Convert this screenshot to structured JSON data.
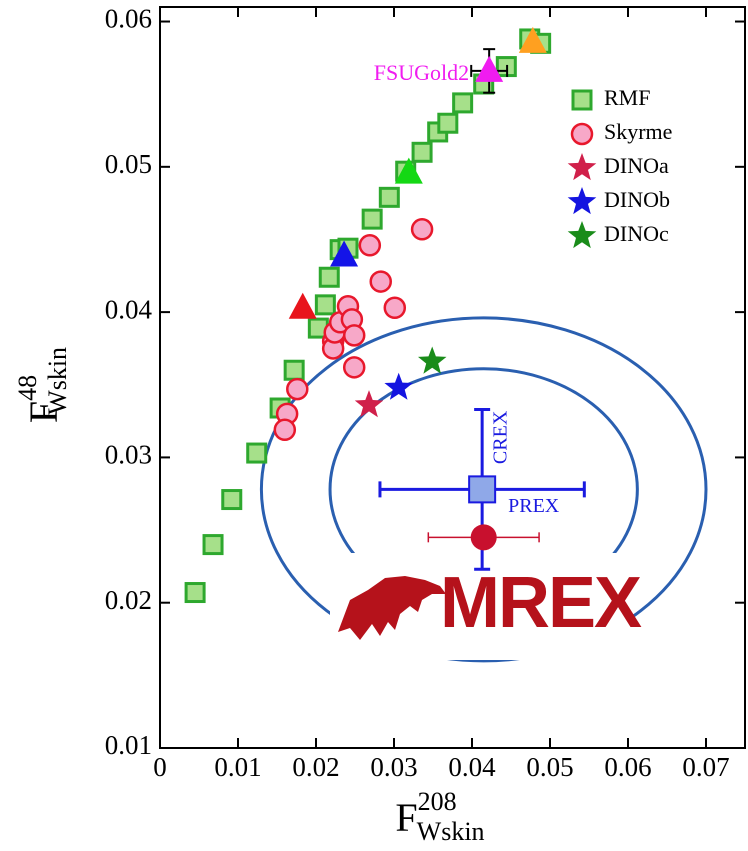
{
  "chart_data": {
    "type": "scatter",
    "x_label": {
      "base": "F",
      "sup": "208",
      "sub": "Wskin"
    },
    "y_label": {
      "base": "F",
      "sup": "48",
      "sub": "Wskin"
    },
    "xlim": [
      0,
      0.075
    ],
    "ylim": [
      0.01,
      0.061
    ],
    "xticks": [
      0,
      0.01,
      0.02,
      0.03,
      0.04,
      0.05,
      0.06,
      0.07
    ],
    "yticks": [
      0.01,
      0.02,
      0.03,
      0.04,
      0.05,
      0.06
    ],
    "series": [
      {
        "name": "RMF",
        "marker": "square",
        "color": "#a6e08a",
        "edge": "#2ea82e",
        "x": [
          0.0045,
          0.0068,
          0.0092,
          0.0124,
          0.0154,
          0.0172,
          0.0203,
          0.0212,
          0.0217,
          0.0231,
          0.0241,
          0.0272,
          0.0294,
          0.0315,
          0.0336,
          0.0356,
          0.0369,
          0.0388,
          0.0415,
          0.0444,
          0.0474,
          0.0488
        ],
        "values": [
          0.0207,
          0.024,
          0.0271,
          0.0303,
          0.0334,
          0.036,
          0.0389,
          0.0405,
          0.0424,
          0.0443,
          0.0444,
          0.0464,
          0.0479,
          0.0497,
          0.051,
          0.0524,
          0.053,
          0.0544,
          0.0557,
          0.0569,
          0.0588,
          0.0585
        ]
      },
      {
        "name": "Skyrme",
        "marker": "circle",
        "color": "#f7a8c8",
        "edge": "#e8182c",
        "x": [
          0.0163,
          0.016,
          0.0176,
          0.0222,
          0.0222,
          0.0224,
          0.0231,
          0.0241,
          0.0246,
          0.0249,
          0.0249,
          0.0269,
          0.0283,
          0.0301,
          0.0336
        ],
        "values": [
          0.033,
          0.0319,
          0.0347,
          0.038,
          0.0375,
          0.0386,
          0.0393,
          0.0404,
          0.0395,
          0.0384,
          0.0362,
          0.0446,
          0.0421,
          0.0403,
          0.0457
        ]
      },
      {
        "name": "DINOa",
        "marker": "star",
        "color": "#d0204a",
        "x": [
          0.0268
        ],
        "values": [
          0.0336
        ]
      },
      {
        "name": "DINOb",
        "marker": "star",
        "color": "#1414e0",
        "x": [
          0.0306
        ],
        "values": [
          0.0348
        ]
      },
      {
        "name": "DINOc",
        "marker": "star",
        "color": "#1a8c1a",
        "x": [
          0.0349
        ],
        "values": [
          0.0366
        ]
      }
    ],
    "triangles": [
      {
        "x": 0.0183,
        "y": 0.0403,
        "color": "#e8141c"
      },
      {
        "x": 0.0236,
        "y": 0.0439,
        "color": "#1414e8"
      },
      {
        "x": 0.0319,
        "y": 0.0496,
        "color": "#14d814"
      },
      {
        "x": 0.0422,
        "y": 0.0566,
        "color": "#f01cf0",
        "xerr": 0.0023,
        "yerr": 0.0015,
        "label": "FSUGold2"
      },
      {
        "x": 0.0478,
        "y": 0.0586,
        "color": "#ffa020"
      }
    ],
    "contours": [
      {
        "cx": 0.0415,
        "cy": 0.0278,
        "rx": 0.0285,
        "ry": 0.0118
      },
      {
        "cx": 0.0415,
        "cy": 0.0278,
        "rx": 0.0197,
        "ry": 0.0083
      }
    ],
    "measurement": {
      "x": 0.0413,
      "y": 0.0278,
      "xerr": 0.0131,
      "yerr": 0.0055,
      "x_name": "PREX",
      "y_name": "CREX",
      "color": "#1a1ae0"
    },
    "projection": {
      "x": 0.0415,
      "y": 0.0245,
      "xerr": 0.0071,
      "color": "#c8102e"
    },
    "logo_text": "MREX"
  }
}
